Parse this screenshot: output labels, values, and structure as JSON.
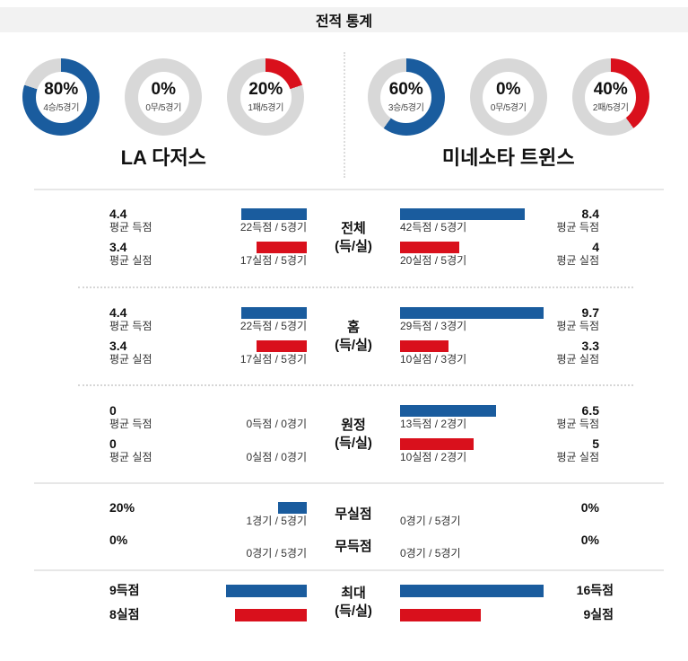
{
  "title": "전적 통계",
  "colors": {
    "blue": "#1a5c9e",
    "red": "#d9101c",
    "gray": "#d8d8d8"
  },
  "teams": {
    "left": {
      "name": "LA 다저스",
      "donuts": [
        {
          "kind": "win",
          "pct": "80%",
          "sub": "4승/5경기",
          "value": 80,
          "color": "blue"
        },
        {
          "kind": "draw",
          "pct": "0%",
          "sub": "0무/5경기",
          "value": 0,
          "color": "gray"
        },
        {
          "kind": "loss",
          "pct": "20%",
          "sub": "1패/5경기",
          "value": 20,
          "color": "red"
        }
      ]
    },
    "right": {
      "name": "미네소타 트윈스",
      "donuts": [
        {
          "kind": "win",
          "pct": "60%",
          "sub": "3승/5경기",
          "value": 60,
          "color": "blue"
        },
        {
          "kind": "draw",
          "pct": "0%",
          "sub": "0무/5경기",
          "value": 0,
          "color": "gray"
        },
        {
          "kind": "loss",
          "pct": "40%",
          "sub": "2패/5경기",
          "value": 40,
          "color": "red"
        }
      ]
    }
  },
  "stat_sections": [
    {
      "kind": "avg",
      "scale_max": 9.7,
      "rows": [
        {
          "id": "total",
          "center": [
            "전체",
            "(득/실)"
          ],
          "left": {
            "values": [
              {
                "num": "4.4",
                "label": "평균 득점"
              },
              {
                "num": "3.4",
                "label": "평균 실점"
              }
            ],
            "bars": [
              {
                "value": 4.4,
                "color": "blue",
                "label": "22득점 / 5경기"
              },
              {
                "value": 3.4,
                "color": "red",
                "label": "17실점 / 5경기"
              }
            ]
          },
          "right": {
            "bars": [
              {
                "value": 8.4,
                "color": "blue",
                "label": "42득점 / 5경기"
              },
              {
                "value": 4,
                "color": "red",
                "label": "20실점 / 5경기"
              }
            ],
            "values": [
              {
                "num": "8.4",
                "label": "평균 득점"
              },
              {
                "num": "4",
                "label": "평균 실점"
              }
            ]
          }
        },
        {
          "id": "home",
          "center": [
            "홈",
            "(득/실)"
          ],
          "left": {
            "values": [
              {
                "num": "4.4",
                "label": "평균 득점"
              },
              {
                "num": "3.4",
                "label": "평균 실점"
              }
            ],
            "bars": [
              {
                "value": 4.4,
                "color": "blue",
                "label": "22득점 / 5경기"
              },
              {
                "value": 3.4,
                "color": "red",
                "label": "17실점 / 5경기"
              }
            ]
          },
          "right": {
            "bars": [
              {
                "value": 9.7,
                "color": "blue",
                "label": "29득점 / 3경기"
              },
              {
                "value": 3.3,
                "color": "red",
                "label": "10실점 / 3경기"
              }
            ],
            "values": [
              {
                "num": "9.7",
                "label": "평균 득점"
              },
              {
                "num": "3.3",
                "label": "평균 실점"
              }
            ]
          }
        },
        {
          "id": "away",
          "center": [
            "원정",
            "(득/실)"
          ],
          "left": {
            "values": [
              {
                "num": "0",
                "label": "평균 득점"
              },
              {
                "num": "0",
                "label": "평균 실점"
              }
            ],
            "bars": [
              {
                "value": 0,
                "color": "blue",
                "label": "0득점 / 0경기"
              },
              {
                "value": 0,
                "color": "red",
                "label": "0실점 / 0경기"
              }
            ]
          },
          "right": {
            "bars": [
              {
                "value": 6.5,
                "color": "blue",
                "label": "13득점 / 2경기"
              },
              {
                "value": 5,
                "color": "red",
                "label": "10실점 / 2경기"
              }
            ],
            "values": [
              {
                "num": "6.5",
                "label": "평균 득점"
              },
              {
                "num": "5",
                "label": "평균 실점"
              }
            ]
          }
        }
      ]
    },
    {
      "kind": "pct",
      "scale_max": 100,
      "rows": [
        {
          "id": "no-concede",
          "center": [
            "무실점"
          ],
          "left": {
            "values": [
              {
                "num": "20%"
              }
            ],
            "bars": [
              {
                "value": 20,
                "color": "blue",
                "label": "1경기 / 5경기"
              }
            ]
          },
          "right": {
            "bars": [
              {
                "value": 0,
                "color": "blue",
                "label": "0경기 / 5경기"
              }
            ],
            "values": [
              {
                "num": "0%"
              }
            ]
          }
        },
        {
          "id": "no-score",
          "center": [
            "무득점"
          ],
          "left": {
            "values": [
              {
                "num": "0%"
              }
            ],
            "bars": [
              {
                "value": 0,
                "color": "blue",
                "label": "0경기 / 5경기"
              }
            ]
          },
          "right": {
            "bars": [
              {
                "value": 0,
                "color": "blue",
                "label": "0경기 / 5경기"
              }
            ],
            "values": [
              {
                "num": "0%"
              }
            ]
          }
        }
      ]
    },
    {
      "kind": "max",
      "scale_max": 16,
      "rows": [
        {
          "id": "max",
          "center": [
            "최대",
            "(득/실)"
          ],
          "left": {
            "values": [
              {
                "num": "9득점"
              },
              {
                "num": "8실점"
              }
            ],
            "bars": [
              {
                "value": 9,
                "color": "blue"
              },
              {
                "value": 8,
                "color": "red"
              }
            ]
          },
          "right": {
            "bars": [
              {
                "value": 16,
                "color": "blue"
              },
              {
                "value": 9,
                "color": "red"
              }
            ],
            "values": [
              {
                "num": "16득점"
              },
              {
                "num": "9실점"
              }
            ]
          }
        }
      ]
    }
  ],
  "chart_data": [
    {
      "type": "pie",
      "title": "LA 다저스",
      "labels": [
        "승",
        "무",
        "패"
      ],
      "values": [
        80,
        0,
        20
      ],
      "annotations": [
        "4승/5경기",
        "0무/5경기",
        "1패/5경기"
      ]
    },
    {
      "type": "pie",
      "title": "미네소타 트윈스",
      "labels": [
        "승",
        "무",
        "패"
      ],
      "values": [
        60,
        0,
        40
      ],
      "annotations": [
        "3승/5경기",
        "0무/5경기",
        "2패/5경기"
      ]
    },
    {
      "type": "bar",
      "title": "전체 (득/실)",
      "series": [
        {
          "name": "LA 다저스",
          "avg_scored": 4.4,
          "avg_conceded": 3.4,
          "scored": 22,
          "conceded": 17,
          "games": 5
        },
        {
          "name": "미네소타 트윈스",
          "avg_scored": 8.4,
          "avg_conceded": 4,
          "scored": 42,
          "conceded": 20,
          "games": 5
        }
      ]
    },
    {
      "type": "bar",
      "title": "홈 (득/실)",
      "series": [
        {
          "name": "LA 다저스",
          "avg_scored": 4.4,
          "avg_conceded": 3.4,
          "scored": 22,
          "conceded": 17,
          "games": 5
        },
        {
          "name": "미네소타 트윈스",
          "avg_scored": 9.7,
          "avg_conceded": 3.3,
          "scored": 29,
          "conceded": 10,
          "games": 3
        }
      ]
    },
    {
      "type": "bar",
      "title": "원정 (득/실)",
      "series": [
        {
          "name": "LA 다저스",
          "avg_scored": 0,
          "avg_conceded": 0,
          "scored": 0,
          "conceded": 0,
          "games": 0
        },
        {
          "name": "미네소타 트윈스",
          "avg_scored": 6.5,
          "avg_conceded": 5,
          "scored": 13,
          "conceded": 10,
          "games": 2
        }
      ]
    },
    {
      "type": "bar",
      "title": "무실점",
      "series": [
        {
          "name": "LA 다저스",
          "pct": 20,
          "games": "1경기 / 5경기"
        },
        {
          "name": "미네소타 트윈스",
          "pct": 0,
          "games": "0경기 / 5경기"
        }
      ]
    },
    {
      "type": "bar",
      "title": "무득점",
      "series": [
        {
          "name": "LA 다저스",
          "pct": 0,
          "games": "0경기 / 5경기"
        },
        {
          "name": "미네소타 트윈스",
          "pct": 0,
          "games": "0경기 / 5경기"
        }
      ]
    },
    {
      "type": "bar",
      "title": "최대 (득/실)",
      "series": [
        {
          "name": "LA 다저스",
          "max_scored": 9,
          "max_conceded": 8
        },
        {
          "name": "미네소타 트윈스",
          "max_scored": 16,
          "max_conceded": 9
        }
      ]
    }
  ]
}
